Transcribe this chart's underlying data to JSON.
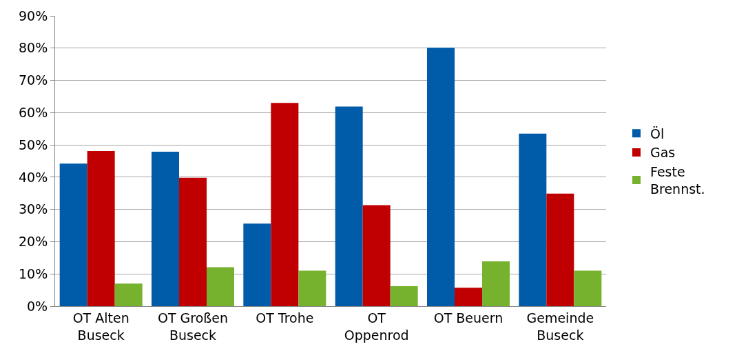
{
  "chart_data": {
    "type": "bar",
    "categories": [
      "OT Alten Buseck",
      "OT Großen Buseck",
      "OT Trohe",
      "OT Oppenrod",
      "OT Beuern",
      "Gemeinde Buseck"
    ],
    "series": [
      {
        "name": "Öl",
        "color": "#005ca9",
        "values": [
          44.2,
          47.9,
          25.6,
          61.9,
          80.1,
          53.5
        ]
      },
      {
        "name": "Gas",
        "color": "#c00000",
        "values": [
          48.1,
          39.8,
          63.0,
          31.3,
          5.7,
          34.9
        ]
      },
      {
        "name": "Feste Brennst.",
        "color": "#77b22f",
        "values": [
          7.0,
          12.1,
          11.0,
          6.2,
          13.9,
          11.0
        ]
      }
    ],
    "ylim": [
      0,
      90
    ],
    "yticks": [
      {
        "value": 0,
        "label": "0%"
      },
      {
        "value": 10,
        "label": "10%"
      },
      {
        "value": 20,
        "label": "20%"
      },
      {
        "value": 30,
        "label": "30%"
      },
      {
        "value": 40,
        "label": "40%"
      },
      {
        "value": 50,
        "label": "50%"
      },
      {
        "value": 60,
        "label": "60%"
      },
      {
        "value": 70,
        "label": "70%"
      },
      {
        "value": 80,
        "label": "80%"
      },
      {
        "value": 90,
        "label": "90%"
      }
    ],
    "grid": "y",
    "legend": "right"
  }
}
